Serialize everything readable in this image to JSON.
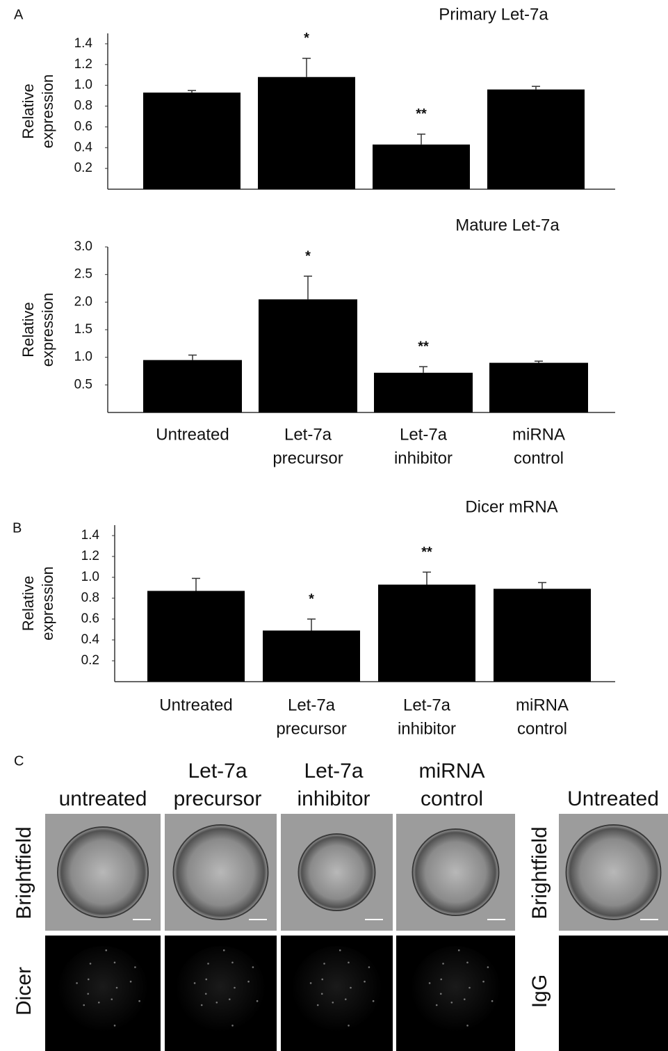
{
  "panel_labels": [
    "A",
    "B",
    "C"
  ],
  "chart_data": [
    {
      "type": "bar",
      "title": "Primary Let-7a",
      "ylabel": [
        "Relative",
        "expression"
      ],
      "categories": [
        null,
        null,
        null,
        null
      ],
      "values": [
        0.93,
        1.08,
        0.43,
        0.96
      ],
      "errors": [
        0.02,
        0.18,
        0.1,
        0.03
      ],
      "annotations": [
        null,
        "*",
        "**",
        null
      ],
      "color": "#000000",
      "ylim": [
        0,
        1.5
      ],
      "yticks": [
        0.2,
        0.4,
        0.6,
        0.8,
        {
          "value": 1,
          "label": "1.0"
        },
        1.2,
        1.4
      ]
    },
    {
      "type": "bar",
      "title": "Mature Let-7a",
      "ylabel": [
        "Relative",
        "expression"
      ],
      "categories": [
        [
          "Untreated"
        ],
        [
          "Let-7a",
          "precursor"
        ],
        [
          "Let-7a",
          "inhibitor"
        ],
        [
          "miRNA",
          "control"
        ]
      ],
      "values": [
        0.95,
        2.05,
        0.72,
        0.9
      ],
      "errors": [
        0.09,
        0.42,
        0.11,
        0.03
      ],
      "annotations": [
        null,
        "*",
        "**",
        null
      ],
      "color": "#000000",
      "ylim": [
        0,
        3
      ],
      "yticks": [
        0.5,
        {
          "value": 1,
          "label": "1.0"
        },
        1.5,
        {
          "value": 2,
          "label": "2.0"
        },
        2.5,
        {
          "value": 3,
          "label": "3.0"
        }
      ]
    },
    {
      "type": "bar",
      "title": "Dicer mRNA",
      "ylabel": [
        "Relative",
        "expression"
      ],
      "categories": [
        [
          "Untreated"
        ],
        [
          "Let-7a",
          "precursor"
        ],
        [
          "Let-7a",
          "inhibitor"
        ],
        [
          "miRNA",
          "control"
        ]
      ],
      "values": [
        0.87,
        0.49,
        0.93,
        0.89
      ],
      "errors": [
        0.12,
        0.11,
        0.12,
        0.06
      ],
      "annotations": [
        null,
        "*",
        "**",
        null
      ],
      "color": "#000000",
      "ylim": [
        0,
        1.5
      ],
      "yticks": [
        0.2,
        0.4,
        0.6,
        0.8,
        {
          "value": 1,
          "label": "1.0"
        },
        1.2,
        1.4
      ]
    }
  ],
  "panel_c": {
    "column_headers": [
      [
        "untreated"
      ],
      [
        "Let-7a",
        "precursor"
      ],
      [
        "Let-7a",
        "inhibitor"
      ],
      [
        "miRNA",
        "control"
      ]
    ],
    "row_labels": [
      "Brightfield",
      "Dicer"
    ],
    "side_header": "Untreated",
    "side_row_labels": [
      "Brightfield",
      "IgG"
    ]
  }
}
